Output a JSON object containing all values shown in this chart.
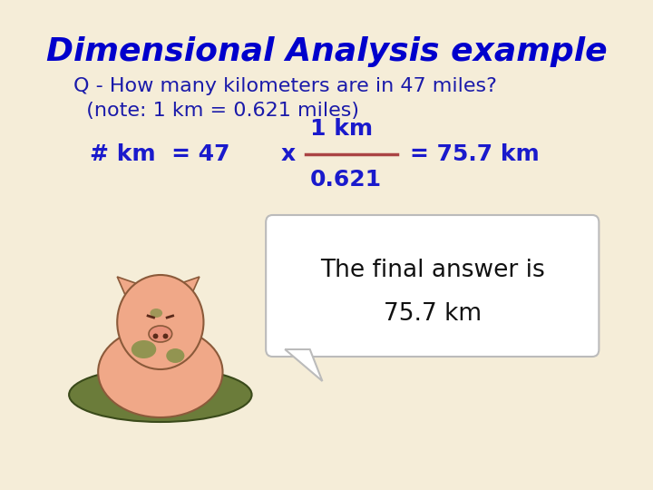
{
  "title": "Dimensional Analysis example",
  "title_color": "#0000cc",
  "title_fontsize": 26,
  "bg_color": "#f5edd8",
  "question_line1": "Q - How many kilometers are in 47 miles?",
  "question_line2": "  (note: 1 km = 0.621 miles)",
  "question_color": "#1a1aaa",
  "question_fontsize": 16,
  "equation_color": "#1a1acc",
  "fraction_line_color": "#aa4444",
  "fraction_text_color": "#1a1acc",
  "equation_fontsize": 18,
  "km_label": "# km  = 47",
  "x_label": "x",
  "numerator": "1 km",
  "denominator": "0.621",
  "result": "= 75.7 km",
  "bubble_text_line1": "The final answer is",
  "bubble_text_line2": "75.7 km",
  "bubble_text_color": "#111111",
  "bubble_text_fontsize": 19,
  "bubble_bg": "#ffffff",
  "bubble_border": "#bbbbbb"
}
